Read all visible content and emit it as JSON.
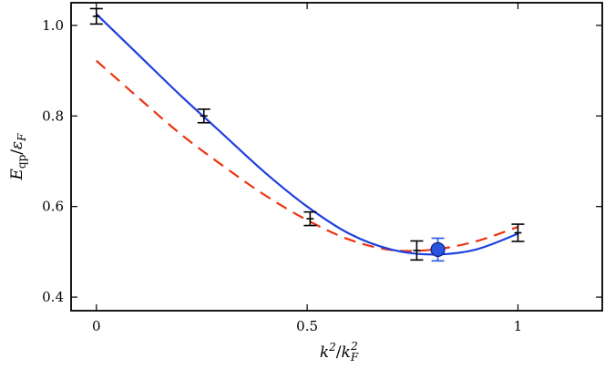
{
  "chart_data": {
    "type": "scatter",
    "title": "",
    "xlabel": {
      "base": "k",
      "sup": "2",
      "sep": "/",
      "base2": "k",
      "sub2": "F",
      "sup2": "2"
    },
    "ylabel": {
      "base": "E",
      "sub": "qp",
      "sep": "/",
      "base2": "ε",
      "sub2": "F"
    },
    "xlim": [
      -0.06,
      1.2
    ],
    "ylim": [
      0.37,
      1.05
    ],
    "xticks": [
      0,
      0.5,
      1
    ],
    "xtick_labels": [
      "0",
      "0.5",
      "1"
    ],
    "yticks": [
      0.4,
      0.6,
      0.8,
      1.0
    ],
    "ytick_labels": [
      "0.4",
      "0.6",
      "0.8",
      "1.0"
    ],
    "grid": false,
    "series": [
      {
        "kind": "points_errorbars",
        "color": "#000000",
        "x": [
          0.0,
          0.255,
          0.507,
          0.76,
          1.0
        ],
        "y": [
          1.02,
          0.8,
          0.573,
          0.503,
          0.542
        ],
        "yerr": [
          0.017,
          0.015,
          0.015,
          0.021,
          0.019
        ]
      },
      {
        "kind": "highlight_point",
        "color": "#2a55e0",
        "x": [
          0.81
        ],
        "y": [
          0.505
        ],
        "yerr": [
          0.025
        ]
      },
      {
        "kind": "line",
        "style": "solid",
        "color": "#1f3fe0",
        "x": [
          0.0,
          0.1,
          0.2,
          0.3,
          0.4,
          0.5,
          0.6,
          0.7,
          0.8,
          0.9,
          1.0
        ],
        "y": [
          1.025,
          0.935,
          0.845,
          0.76,
          0.675,
          0.6,
          0.54,
          0.505,
          0.494,
          0.505,
          0.54
        ]
      },
      {
        "kind": "line",
        "style": "dashed",
        "color": "#ee3311",
        "x": [
          0.0,
          0.1,
          0.2,
          0.3,
          0.4,
          0.5,
          0.6,
          0.7,
          0.8,
          0.9,
          1.0
        ],
        "y": [
          0.922,
          0.84,
          0.76,
          0.69,
          0.625,
          0.57,
          0.527,
          0.504,
          0.505,
          0.523,
          0.555
        ]
      }
    ]
  }
}
